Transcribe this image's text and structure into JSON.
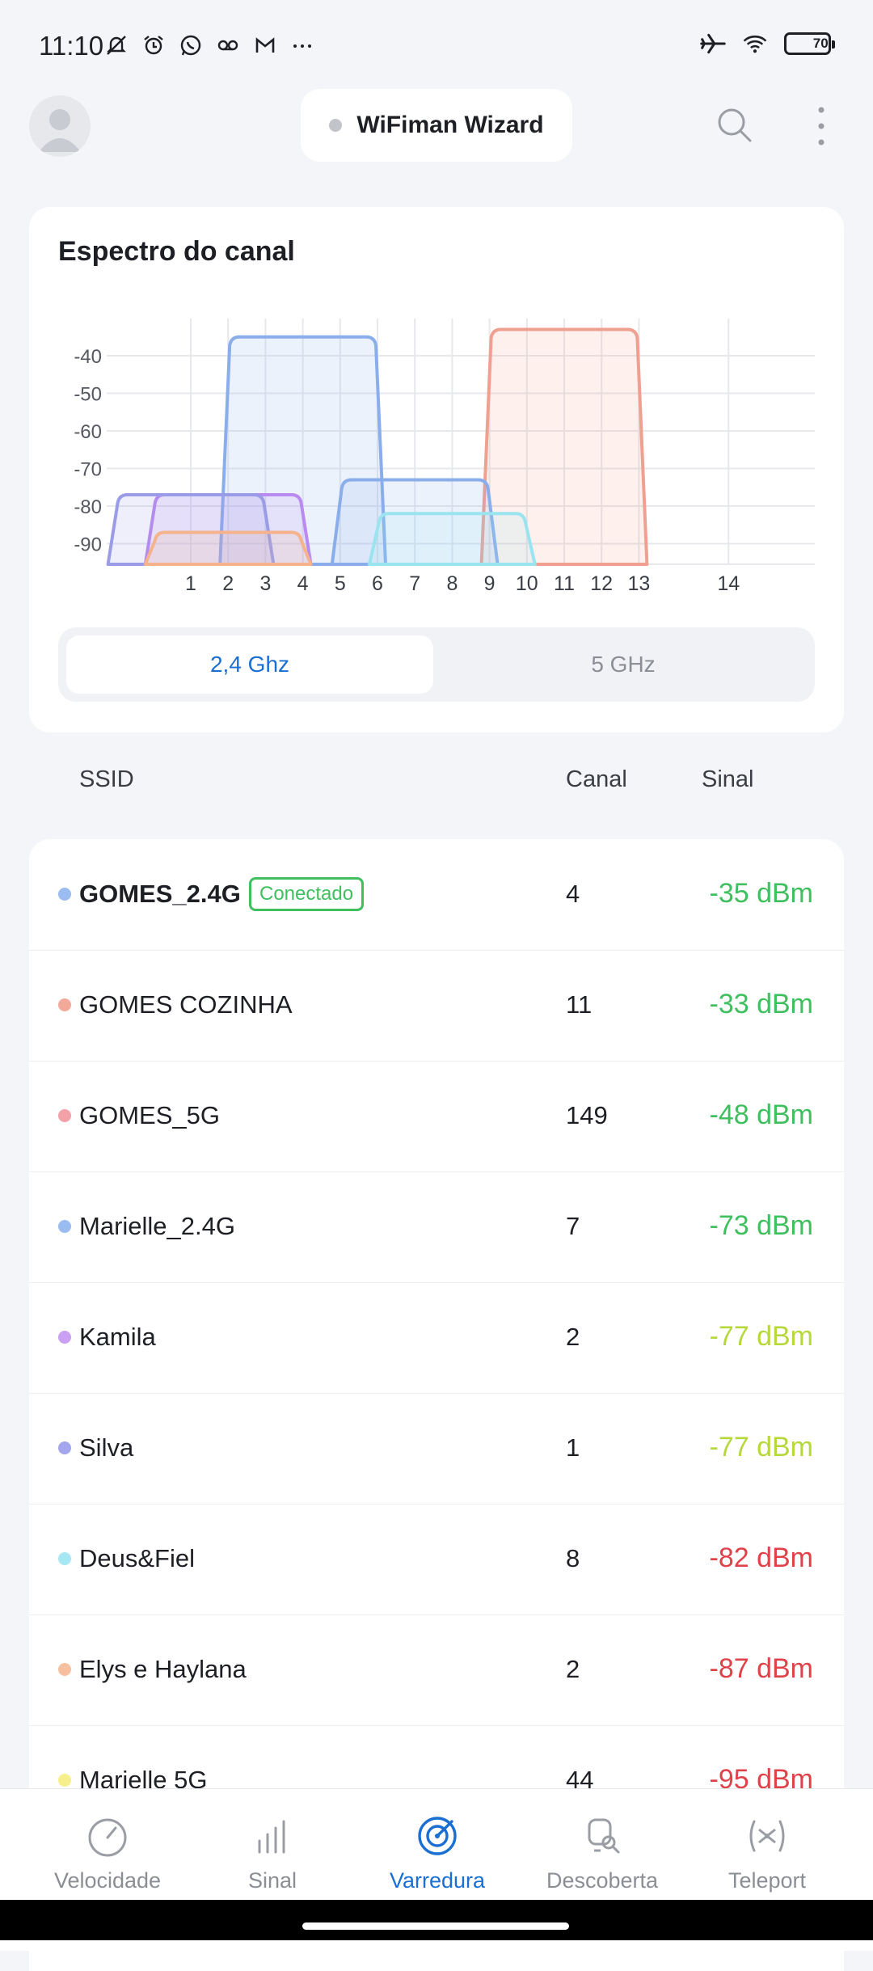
{
  "status_bar": {
    "time": "11:10",
    "battery": "70"
  },
  "header": {
    "title": "WiFiman Wizard"
  },
  "spectrum": {
    "title": "Espectro do canal",
    "bands": {
      "active": "2,4 Ghz",
      "inactive": "5 GHz"
    }
  },
  "chart_data": {
    "type": "area",
    "y_ticks": [
      "-40",
      "-50",
      "-60",
      "-70",
      "-80",
      "-90"
    ],
    "x_ticks": [
      "1",
      "2",
      "3",
      "4",
      "5",
      "6",
      "7",
      "8",
      "9",
      "10",
      "11",
      "12",
      "13",
      "14"
    ],
    "ylim": [
      -95,
      -30
    ],
    "grid": true,
    "series": [
      {
        "channel": 4,
        "signal": -35,
        "color": "#8aaeeb"
      },
      {
        "channel": 11,
        "signal": -33,
        "color": "#f0a090"
      },
      {
        "channel": 7,
        "signal": -73,
        "color": "#8aaeeb"
      },
      {
        "channel": 2,
        "signal": -77,
        "color": "#b98af0"
      },
      {
        "channel": 1,
        "signal": -77,
        "color": "#9a9ce8"
      },
      {
        "channel": 8,
        "signal": -82,
        "color": "#9ae4f0"
      },
      {
        "channel": 2,
        "signal": -87,
        "color": "#f5b28c"
      }
    ]
  },
  "table": {
    "headers": {
      "ssid": "SSID",
      "channel": "Canal",
      "signal": "Sinal"
    },
    "connected_label": "Conectado",
    "rows": [
      {
        "ssid": "GOMES_2.4G",
        "channel": "4",
        "signal": "-35 dBm",
        "dot": "#9bbcf0",
        "color": "#3fbf5e",
        "connected": true
      },
      {
        "ssid": "GOMES COZINHA",
        "channel": "11",
        "signal": "-33 dBm",
        "dot": "#f3a99a",
        "color": "#3fbf5e"
      },
      {
        "ssid": "GOMES_5G",
        "channel": "149",
        "signal": "-48 dBm",
        "dot": "#f3a1a8",
        "color": "#3fbf5e"
      },
      {
        "ssid": "Marielle_2.4G",
        "channel": "7",
        "signal": "-73 dBm",
        "dot": "#9bbcf0",
        "color": "#3fbf5e"
      },
      {
        "ssid": "Kamila",
        "channel": "2",
        "signal": "-77 dBm",
        "dot": "#c9a0f2",
        "color": "#b6d83a"
      },
      {
        "ssid": "Silva",
        "channel": "1",
        "signal": "-77 dBm",
        "dot": "#a3a6ec",
        "color": "#b6d83a"
      },
      {
        "ssid": "Deus&Fiel",
        "channel": "8",
        "signal": "-82 dBm",
        "dot": "#a6e7f3",
        "color": "#e0424a"
      },
      {
        "ssid": "Elys e Haylana",
        "channel": "2",
        "signal": "-87 dBm",
        "dot": "#f6c0a0",
        "color": "#e0424a"
      },
      {
        "ssid": "Marielle 5G",
        "channel": "44",
        "signal": "-95 dBm",
        "dot": "#f7ef8c",
        "color": "#e0424a"
      }
    ]
  },
  "nav": {
    "items": [
      {
        "label": "Velocidade",
        "icon": "speedometer-icon"
      },
      {
        "label": "Sinal",
        "icon": "signal-bars-icon"
      },
      {
        "label": "Varredura",
        "icon": "radar-icon"
      },
      {
        "label": "Descoberta",
        "icon": "discovery-icon"
      },
      {
        "label": "Teleport",
        "icon": "teleport-icon"
      }
    ],
    "active": "Varredura"
  }
}
